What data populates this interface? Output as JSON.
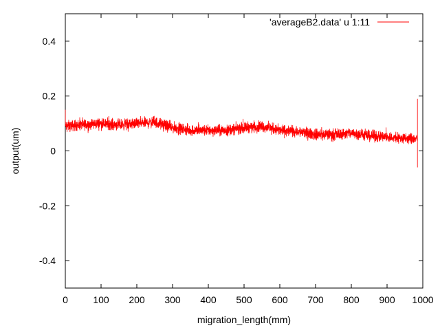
{
  "chart_data": {
    "type": "line",
    "xlabel": "migration_length(mm)",
    "ylabel": "output(um)",
    "xlim": [
      0,
      1000
    ],
    "ylim": [
      -0.5,
      0.5
    ],
    "x_ticks": [
      0,
      100,
      200,
      300,
      400,
      500,
      600,
      700,
      800,
      900,
      1000
    ],
    "y_ticks": [
      -0.4,
      -0.2,
      0,
      0.2,
      0.4
    ],
    "x_tick_labels": [
      "0",
      "100",
      "200",
      "300",
      "400",
      "500",
      "600",
      "700",
      "800",
      "900",
      "1000"
    ],
    "y_tick_labels": [
      "-0.4",
      "-0.2",
      "0",
      "0.2",
      "0.4"
    ],
    "grid": false,
    "legend_position": "top-right",
    "series": [
      {
        "name": "'averageB2.data' u 1:11",
        "color": "#ff0000",
        "x_range": [
          0,
          985
        ],
        "trend": {
          "x": [
            0,
            50,
            100,
            150,
            200,
            250,
            300,
            350,
            400,
            450,
            500,
            550,
            600,
            650,
            700,
            750,
            800,
            850,
            900,
            950,
            985
          ],
          "y": [
            0.09,
            0.095,
            0.1,
            0.095,
            0.1,
            0.105,
            0.085,
            0.075,
            0.075,
            0.075,
            0.085,
            0.09,
            0.075,
            0.07,
            0.06,
            0.06,
            0.065,
            0.055,
            0.05,
            0.045,
            0.045
          ]
        },
        "noise_amplitude": 0.03,
        "endpoints": {
          "start_y": 0.15,
          "end_spike_high": 0.19,
          "end_spike_low": -0.06
        }
      }
    ]
  }
}
